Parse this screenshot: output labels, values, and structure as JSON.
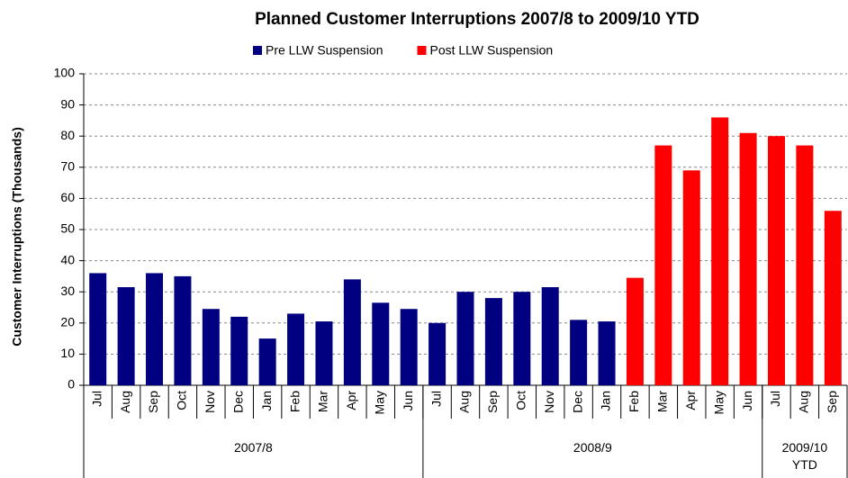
{
  "chart_data": {
    "type": "bar",
    "title": "Planned Customer Interruptions 2007/8 to 2009/10 YTD",
    "y_label": "Customer Interruptions (Thousands)",
    "groups": [
      {
        "label": "2007/8",
        "categories": [
          "Jul",
          "Aug",
          "Sep",
          "Oct",
          "Nov",
          "Dec",
          "Jan",
          "Feb",
          "Mar",
          "Apr",
          "May",
          "Jun"
        ]
      },
      {
        "label": "2008/9",
        "categories": [
          "Jul",
          "Aug",
          "Sep",
          "Oct",
          "Nov",
          "Dec",
          "Jan",
          "Feb",
          "Mar",
          "Apr",
          "May",
          "Jun"
        ]
      },
      {
        "label": "2009/10 YTD",
        "categories": [
          "Jul",
          "Aug",
          "Sep"
        ]
      }
    ],
    "series": [
      {
        "name": "Pre LLW Suspension",
        "color": "#000080",
        "values": [
          36,
          31.5,
          36,
          35,
          24.5,
          22,
          15,
          23,
          20.5,
          34,
          26.5,
          24.5,
          20,
          30,
          28,
          30,
          31.5,
          21,
          20.5,
          null,
          null,
          null,
          null,
          null,
          null,
          null,
          null
        ]
      },
      {
        "name": "Post LLW Suspension",
        "color": "#ff0000",
        "values": [
          null,
          null,
          null,
          null,
          null,
          null,
          null,
          null,
          null,
          null,
          null,
          null,
          null,
          null,
          null,
          null,
          null,
          null,
          null,
          34.5,
          77,
          69,
          86,
          81,
          80,
          77,
          56
        ]
      }
    ],
    "ylim": [
      0,
      100
    ],
    "yticks": [
      0,
      10,
      20,
      30,
      40,
      50,
      60,
      70,
      80,
      90,
      100
    ],
    "grid": true
  }
}
